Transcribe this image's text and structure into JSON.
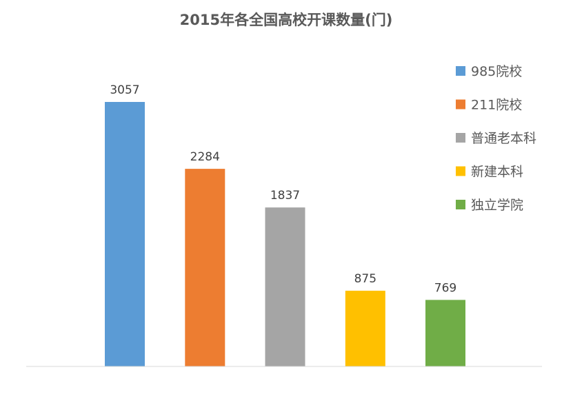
{
  "chart_data": {
    "type": "bar",
    "title": "2015年各全国高校开课数量(门)",
    "xlabel": "",
    "ylabel": "",
    "ylim": [
      0,
      3400
    ],
    "grid": false,
    "legend": "right",
    "data_labels": true,
    "categories": [
      "985院校",
      "211院校",
      "普通老本科",
      "新建本科",
      "独立学院"
    ],
    "values": [
      3057,
      2284,
      1837,
      875,
      769
    ],
    "colors": [
      "#5B9BD5",
      "#ED7D31",
      "#A5A5A5",
      "#FFC000",
      "#70AD47"
    ]
  }
}
